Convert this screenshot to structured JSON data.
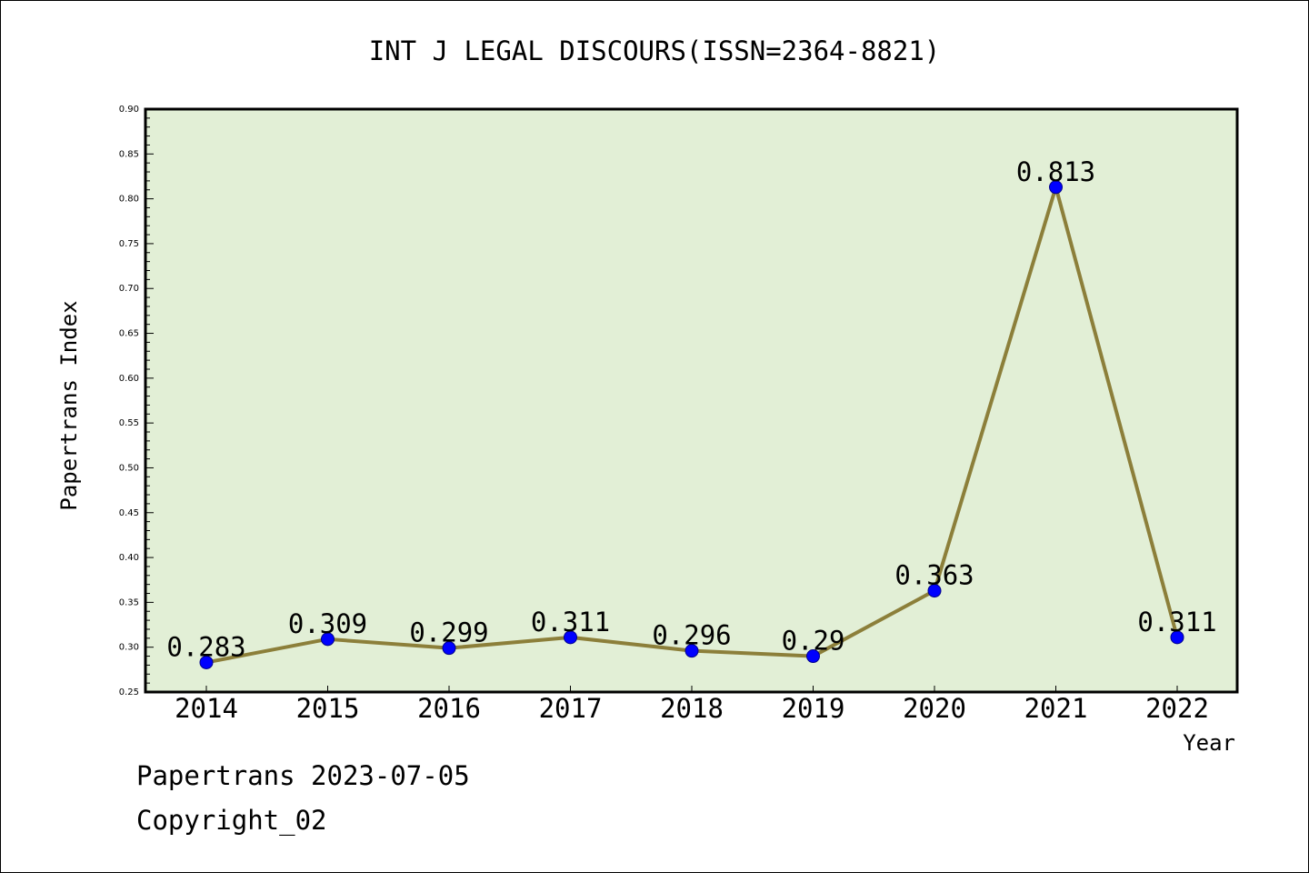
{
  "chart_data": {
    "type": "line",
    "title": "INT J LEGAL DISCOURS(ISSN=2364-8821)",
    "xlabel": "Year",
    "ylabel": "Papertrans Index",
    "categories": [
      "2014",
      "2015",
      "2016",
      "2017",
      "2018",
      "2019",
      "2020",
      "2021",
      "2022"
    ],
    "values": [
      0.283,
      0.309,
      0.299,
      0.311,
      0.296,
      0.29,
      0.363,
      0.813,
      0.311
    ],
    "data_labels": [
      "0.283",
      "0.309",
      "0.299",
      "0.311",
      "0.296",
      "0.29",
      "0.363",
      "0.813",
      "0.311"
    ],
    "ylim": [
      0.25,
      0.9
    ],
    "yticks": [
      "0.25",
      "0.30",
      "0.35",
      "0.40",
      "0.45",
      "0.50",
      "0.55",
      "0.60",
      "0.65",
      "0.70",
      "0.75",
      "0.80",
      "0.85",
      "0.90"
    ],
    "grid": false,
    "colors": {
      "plot_background": "#e2efd6",
      "line": "#8c7f3a",
      "marker": "#0000ff",
      "axis": "#000000"
    }
  },
  "footer": {
    "date_line": "Papertrans 2023-07-05",
    "copyright": "Copyright_02"
  }
}
